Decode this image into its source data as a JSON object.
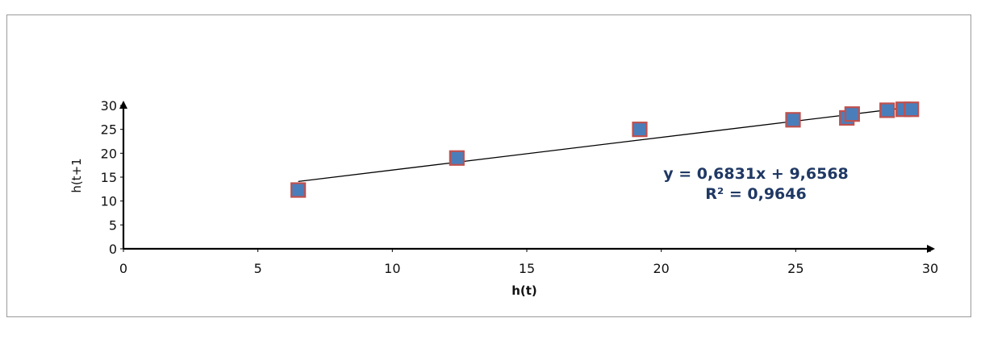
{
  "chart_data": {
    "type": "scatter",
    "title": "",
    "xlabel": "h(t)",
    "ylabel": "h(t+1",
    "xlim": [
      0,
      30
    ],
    "ylim": [
      0,
      30
    ],
    "xticks": [
      0,
      5,
      10,
      15,
      20,
      25,
      30
    ],
    "yticks": [
      0,
      5,
      10,
      15,
      20,
      25,
      30
    ],
    "grid": false,
    "legend": "none",
    "series": [
      {
        "x": [
          6.5,
          12.4,
          19.2,
          24.9,
          26.9,
          27.1,
          28.4,
          29.0,
          29.3
        ],
        "y": [
          12.3,
          19.0,
          25.0,
          27.0,
          27.4,
          28.2,
          29.0,
          29.2,
          29.2
        ],
        "marker": "square",
        "fill_color": "#4a7ebb",
        "edge_color": "#c0504d"
      }
    ],
    "trendline": {
      "type": "linear",
      "slope": 0.6831,
      "intercept": 9.6568,
      "x_range": [
        6.5,
        29.3
      ],
      "color": "#000000"
    },
    "annotations": {
      "equation": "y = 0,6831x + 9,6568",
      "r_squared": "R² = 0,9646",
      "color": "#1f3864"
    }
  }
}
